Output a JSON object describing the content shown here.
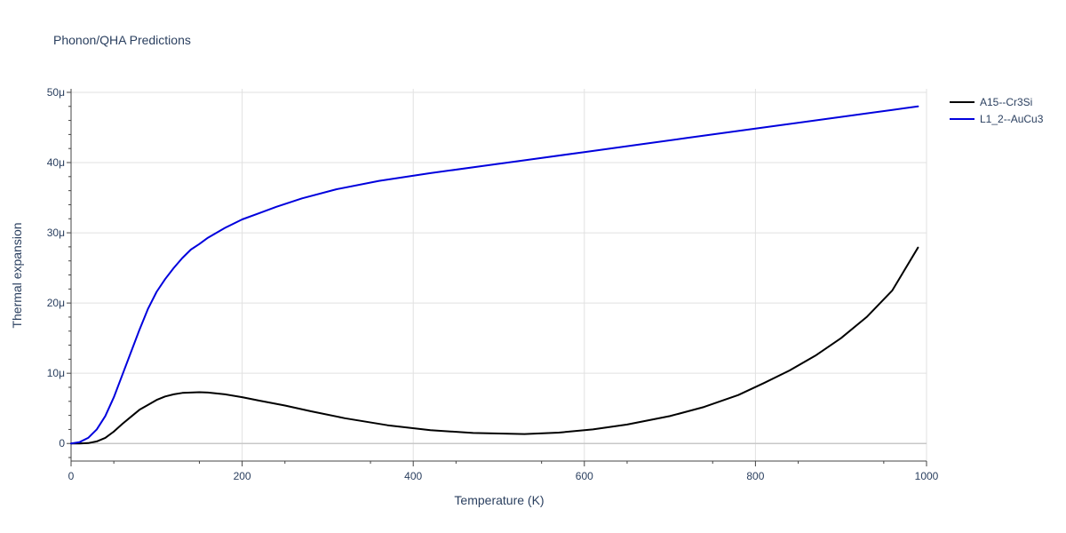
{
  "chart_data": {
    "type": "line",
    "title": "Phonon/QHA Predictions",
    "xlabel": "Temperature (K)",
    "ylabel": "Thermal expansion",
    "xlim": [
      0,
      1000
    ],
    "ylim": [
      -2.5,
      50.5
    ],
    "x_ticks": [
      0,
      200,
      400,
      600,
      800,
      1000
    ],
    "x_tick_labels": [
      "0",
      "200",
      "400",
      "600",
      "800",
      "1000"
    ],
    "y_ticks": [
      0,
      10,
      20,
      30,
      40,
      50
    ],
    "y_tick_labels": [
      "0",
      "10μ",
      "20μ",
      "30μ",
      "40μ",
      "50μ"
    ],
    "y_unit": "μ",
    "grid": true,
    "legend_position": "top-right",
    "series": [
      {
        "name": "A15--Cr3Si",
        "color": "#000000",
        "x": [
          0,
          10,
          20,
          30,
          40,
          50,
          60,
          70,
          80,
          90,
          100,
          110,
          120,
          130,
          140,
          150,
          160,
          180,
          200,
          220,
          250,
          280,
          320,
          370,
          420,
          470,
          530,
          570,
          610,
          650,
          700,
          740,
          780,
          810,
          840,
          870,
          900,
          930,
          960,
          990
        ],
        "y": [
          0,
          0,
          0.05,
          0.3,
          0.8,
          1.7,
          2.8,
          3.8,
          4.8,
          5.5,
          6.2,
          6.7,
          7.0,
          7.2,
          7.25,
          7.3,
          7.25,
          7.0,
          6.6,
          6.1,
          5.4,
          4.6,
          3.6,
          2.6,
          1.9,
          1.5,
          1.35,
          1.55,
          2.0,
          2.7,
          3.9,
          5.2,
          6.9,
          8.6,
          10.4,
          12.5,
          15.0,
          18.0,
          21.8,
          27.9
        ]
      },
      {
        "name": "L1_2--AuCu3",
        "color": "#0000dd",
        "x": [
          0,
          10,
          20,
          30,
          40,
          50,
          60,
          70,
          80,
          90,
          100,
          110,
          120,
          130,
          140,
          150,
          160,
          180,
          200,
          220,
          240,
          270,
          310,
          360,
          420,
          480,
          540,
          600,
          660,
          720,
          780,
          840,
          900,
          960,
          990
        ],
        "y": [
          0,
          0.2,
          0.8,
          2.0,
          3.9,
          6.6,
          9.8,
          13.0,
          16.2,
          19.2,
          21.6,
          23.4,
          25.0,
          26.4,
          27.6,
          28.4,
          29.3,
          30.7,
          31.9,
          32.8,
          33.7,
          34.9,
          36.2,
          37.4,
          38.5,
          39.5,
          40.5,
          41.5,
          42.5,
          43.5,
          44.5,
          45.5,
          46.5,
          47.5,
          48.0
        ]
      }
    ]
  }
}
